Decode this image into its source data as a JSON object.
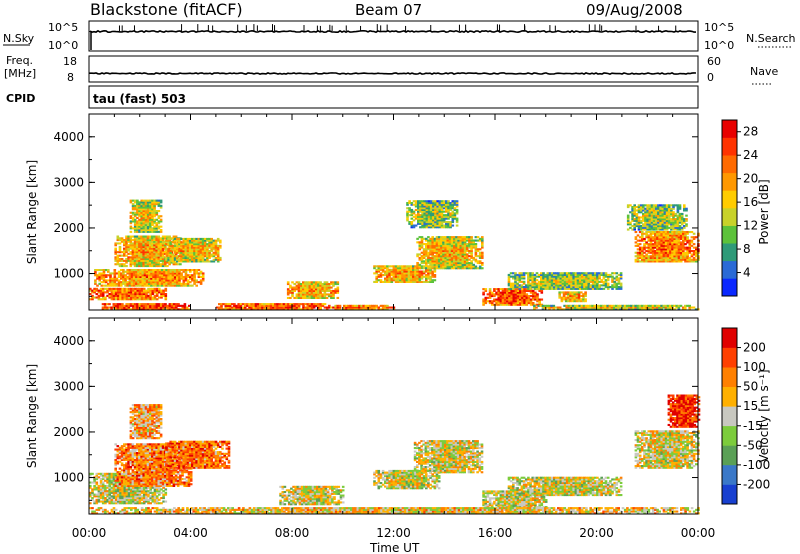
{
  "header": {
    "station": "Blackstone (fitACF)",
    "beam": "Beam 07",
    "date": "09/Aug/2008"
  },
  "noise_panel": {
    "left_label": "N.Sky",
    "left_ticks": [
      "10^5",
      "10^0"
    ],
    "right_ticks": [
      "10^5",
      "10^0"
    ],
    "right_label": "N.Search"
  },
  "freq_panel": {
    "left_label_1": "Freq.",
    "left_label_2": "[MHz]",
    "left_ticks": [
      "18",
      "8"
    ],
    "right_ticks": [
      "60",
      "0"
    ],
    "right_label": "Nave"
  },
  "cpid_panel": {
    "left_label": "CPID",
    "text": "tau (fast) 503"
  },
  "time_axis": {
    "label": "Time UT",
    "ticks": [
      "00:00",
      "04:00",
      "08:00",
      "12:00",
      "16:00",
      "20:00",
      "00:00"
    ]
  },
  "chart_data": [
    {
      "type": "heatmap",
      "name": "power",
      "ylabel": "Slant Range [km]",
      "xrange_hours": [
        0,
        24
      ],
      "yrange_km": [
        200,
        4500
      ],
      "ytick_labels": [
        "1000",
        "2000",
        "3000",
        "4000"
      ],
      "colorbar": {
        "label": "Power [dB]",
        "ticks": [
          "4",
          "8",
          "12",
          "16",
          "20",
          "24",
          "28"
        ],
        "colors": [
          "#0a28ff",
          "#2a6ad6",
          "#2e9a78",
          "#5cc23a",
          "#c8d22a",
          "#ffcc00",
          "#ff9800",
          "#ff6a00",
          "#ff3300",
          "#e80000"
        ]
      },
      "echo_regions": [
        {
          "t0": 0.5,
          "t1": 3.9,
          "r0": 200,
          "r1": 330,
          "level": 0.85
        },
        {
          "t0": 0.0,
          "t1": 3.0,
          "r0": 420,
          "r1": 650,
          "level": 0.75
        },
        {
          "t0": 0.2,
          "t1": 4.5,
          "r0": 720,
          "r1": 1100,
          "level": 0.65
        },
        {
          "t0": 1.0,
          "t1": 3.6,
          "r0": 1150,
          "r1": 1800,
          "level": 0.6
        },
        {
          "t0": 1.6,
          "t1": 2.8,
          "r0": 1900,
          "r1": 2600,
          "level": 0.5
        },
        {
          "t0": 3.0,
          "t1": 5.2,
          "r0": 1250,
          "r1": 1750,
          "level": 0.55
        },
        {
          "t0": 7.8,
          "t1": 9.8,
          "r0": 450,
          "r1": 800,
          "level": 0.6
        },
        {
          "t0": 5.0,
          "t1": 9.5,
          "r0": 200,
          "r1": 320,
          "level": 0.8
        },
        {
          "t0": 11.2,
          "t1": 13.6,
          "r0": 800,
          "r1": 1150,
          "level": 0.6
        },
        {
          "t0": 12.9,
          "t1": 15.5,
          "r0": 1100,
          "r1": 1800,
          "level": 0.55
        },
        {
          "t0": 12.5,
          "t1": 14.5,
          "r0": 2000,
          "r1": 2600,
          "level": 0.4
        },
        {
          "t0": 15.5,
          "t1": 17.8,
          "r0": 300,
          "r1": 650,
          "level": 0.8
        },
        {
          "t0": 16.5,
          "t1": 21.0,
          "r0": 650,
          "r1": 1000,
          "level": 0.4
        },
        {
          "t0": 18.5,
          "t1": 19.6,
          "r0": 380,
          "r1": 600,
          "level": 0.6
        },
        {
          "t0": 21.5,
          "t1": 24.0,
          "r0": 1250,
          "r1": 1900,
          "level": 0.7
        },
        {
          "t0": 21.2,
          "t1": 23.5,
          "r0": 1950,
          "r1": 2500,
          "level": 0.4
        },
        {
          "t0": 9.5,
          "t1": 12.0,
          "r0": 200,
          "r1": 290,
          "level": 0.7
        },
        {
          "t0": 17.5,
          "t1": 24.0,
          "r0": 200,
          "r1": 280,
          "level": 0.5
        }
      ]
    },
    {
      "type": "heatmap",
      "name": "velocity",
      "ylabel": "Slant Range [km]",
      "xrange_hours": [
        0,
        24
      ],
      "yrange_km": [
        200,
        4500
      ],
      "ytick_labels": [
        "1000",
        "2000",
        "3000",
        "4000"
      ],
      "colorbar": {
        "label": "Velocity [m s⁻¹]",
        "ticks": [
          "200",
          "100",
          "50",
          "15",
          "-15",
          "-50",
          "-100",
          "-200"
        ],
        "colors": [
          "#1840d0",
          "#3a78c8",
          "#5aa056",
          "#7ccc3c",
          "#c8c8c0",
          "#ffb000",
          "#ff8000",
          "#ff4000",
          "#e00000"
        ]
      },
      "echo_regions": [
        {
          "t0": 0.0,
          "t1": 3.0,
          "r0": 420,
          "r1": 1100,
          "level": 0.5
        },
        {
          "t0": 1.0,
          "t1": 4.0,
          "r0": 800,
          "r1": 1750,
          "level": 0.7
        },
        {
          "t0": 1.6,
          "t1": 2.8,
          "r0": 1850,
          "r1": 2600,
          "level": 0.65
        },
        {
          "t0": 3.0,
          "t1": 5.5,
          "r0": 1200,
          "r1": 1800,
          "level": 0.75
        },
        {
          "t0": 7.5,
          "t1": 10.0,
          "r0": 400,
          "r1": 800,
          "level": 0.5
        },
        {
          "t0": 11.2,
          "t1": 13.8,
          "r0": 750,
          "r1": 1150,
          "level": 0.5
        },
        {
          "t0": 12.8,
          "t1": 15.5,
          "r0": 1100,
          "r1": 1800,
          "level": 0.52
        },
        {
          "t0": 15.5,
          "t1": 18.0,
          "r0": 300,
          "r1": 700,
          "level": 0.5
        },
        {
          "t0": 16.5,
          "t1": 21.0,
          "r0": 600,
          "r1": 1000,
          "level": 0.5
        },
        {
          "t0": 21.5,
          "t1": 24.0,
          "r0": 1200,
          "r1": 2000,
          "level": 0.52
        },
        {
          "t0": 22.8,
          "t1": 24.0,
          "r0": 2100,
          "r1": 2800,
          "level": 0.9
        },
        {
          "t0": 0.0,
          "t1": 24.0,
          "r0": 200,
          "r1": 320,
          "level": 0.58
        }
      ]
    }
  ]
}
